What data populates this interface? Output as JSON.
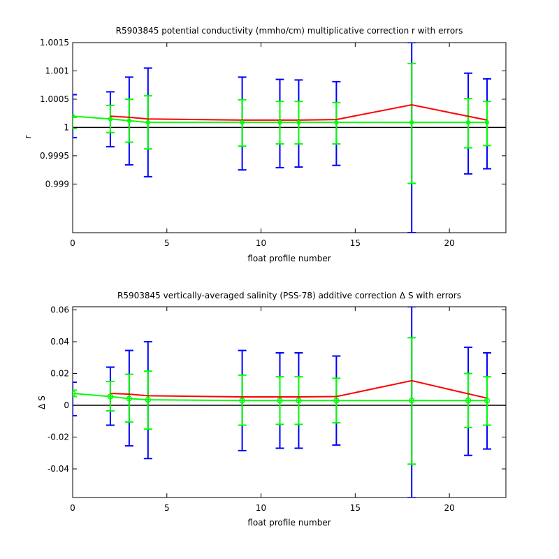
{
  "chart_data": [
    {
      "type": "line",
      "title": "R5903845 potential conductivity (mmho/cm) multiplicative correction r with errors",
      "xlabel": "float profile number",
      "ylabel": "r",
      "xlim": [
        0,
        23
      ],
      "ylim": [
        0.99814,
        1.0015
      ],
      "xticks": [
        0,
        5,
        10,
        15,
        20
      ],
      "yticks": [
        0.999,
        0.9995,
        1,
        1.0005,
        1.001,
        1.0015
      ],
      "ytick_labels": [
        "0.999",
        "0.9995",
        "1",
        "1.0005",
        "1.001",
        "1.0015"
      ],
      "reference_line": 1,
      "grid": false,
      "colors": {
        "red": "#ff0000",
        "green": "#00ff00",
        "blue": "#0000ff",
        "ref": "#000000"
      },
      "series": [
        {
          "color": "#ff0000",
          "x": [
            2,
            3,
            4,
            9,
            11,
            12,
            14,
            18,
            22
          ],
          "y": [
            1.0002,
            1.00018,
            1.00015,
            1.00013,
            1.00013,
            1.00013,
            1.00014,
            1.0004,
            1.00013
          ]
        },
        {
          "color": "#00ff00",
          "x": [
            0,
            2,
            3,
            4,
            9,
            11,
            12,
            14,
            18,
            21,
            22
          ],
          "y": [
            1.0002,
            1.00015,
            1.00012,
            1.00009,
            1.00009,
            1.00009,
            1.00009,
            1.00009,
            1.00009,
            1.00009,
            1.00009
          ]
        }
      ],
      "errorbars_blue": [
        {
          "x": 0,
          "low": 0.99982,
          "high": 1.00058
        },
        {
          "x": 2,
          "low": 0.99966,
          "high": 1.00063
        },
        {
          "x": 3,
          "low": 0.99934,
          "high": 1.00089
        },
        {
          "x": 4,
          "low": 0.99913,
          "high": 1.00105
        },
        {
          "x": 9,
          "low": 0.99925,
          "high": 1.00089
        },
        {
          "x": 11,
          "low": 0.99929,
          "high": 1.00085
        },
        {
          "x": 12,
          "low": 0.9993,
          "high": 1.00084
        },
        {
          "x": 14,
          "low": 0.99933,
          "high": 1.00081
        },
        {
          "x": 18,
          "low": 0.99814,
          "high": 1.0015
        },
        {
          "x": 21,
          "low": 0.99918,
          "high": 1.00096
        },
        {
          "x": 22,
          "low": 0.99927,
          "high": 1.00086
        }
      ],
      "errorbars_green": [
        {
          "x": 0,
          "low": 0.99998,
          "high": 1.00018
        },
        {
          "x": 2,
          "low": 0.99991,
          "high": 1.00039
        },
        {
          "x": 3,
          "low": 0.99974,
          "high": 1.0005
        },
        {
          "x": 4,
          "low": 0.99962,
          "high": 1.00056
        },
        {
          "x": 9,
          "low": 0.99967,
          "high": 1.00049
        },
        {
          "x": 11,
          "low": 0.99971,
          "high": 1.00046
        },
        {
          "x": 12,
          "low": 0.99971,
          "high": 1.00046
        },
        {
          "x": 14,
          "low": 0.99971,
          "high": 1.00044
        },
        {
          "x": 18,
          "low": 0.99901,
          "high": 1.00113
        },
        {
          "x": 21,
          "low": 0.99964,
          "high": 1.00051
        },
        {
          "x": 22,
          "low": 0.99968,
          "high": 1.00046
        }
      ]
    },
    {
      "type": "line",
      "title": "R5903845 vertically-averaged salinity (PSS-78) additive correction Δ S with errors",
      "xlabel": "float profile number",
      "ylabel": "Δ S",
      "xlim": [
        0,
        23
      ],
      "ylim": [
        -0.058,
        0.062
      ],
      "xticks": [
        0,
        5,
        10,
        15,
        20
      ],
      "yticks": [
        -0.04,
        -0.02,
        0,
        0.02,
        0.04,
        0.06
      ],
      "ytick_labels": [
        "-0.04",
        "-0.02",
        "0",
        "0.02",
        "0.04",
        "0.06"
      ],
      "reference_line": 0,
      "grid": false,
      "colors": {
        "red": "#ff0000",
        "green": "#00ff00",
        "blue": "#0000ff",
        "ref": "#000000"
      },
      "series": [
        {
          "color": "#ff0000",
          "x": [
            2,
            3,
            4,
            9,
            11,
            12,
            14,
            18,
            22
          ],
          "y": [
            0.0075,
            0.007,
            0.006,
            0.0053,
            0.0053,
            0.0053,
            0.0055,
            0.0155,
            0.0045
          ]
        },
        {
          "color": "#00ff00",
          "x": [
            0,
            2,
            3,
            4,
            9,
            11,
            12,
            14,
            18,
            21,
            22
          ],
          "y": [
            0.0075,
            0.0055,
            0.0042,
            0.0035,
            0.003,
            0.003,
            0.003,
            0.003,
            0.003,
            0.003,
            0.003
          ]
        }
      ],
      "errorbars_blue": [
        {
          "x": 0,
          "low": -0.0065,
          "high": 0.0145
        },
        {
          "x": 2,
          "low": -0.0125,
          "high": 0.024
        },
        {
          "x": 3,
          "low": -0.0255,
          "high": 0.0345
        },
        {
          "x": 4,
          "low": -0.0335,
          "high": 0.04
        },
        {
          "x": 9,
          "low": -0.0285,
          "high": 0.0345
        },
        {
          "x": 11,
          "low": -0.027,
          "high": 0.033
        },
        {
          "x": 12,
          "low": -0.027,
          "high": 0.033
        },
        {
          "x": 14,
          "low": -0.025,
          "high": 0.031
        },
        {
          "x": 18,
          "low": -0.058,
          "high": 0.062
        },
        {
          "x": 21,
          "low": -0.0315,
          "high": 0.0365
        },
        {
          "x": 22,
          "low": -0.0275,
          "high": 0.033
        }
      ],
      "errorbars_green": [
        {
          "x": 0,
          "low": 0.0055,
          "high": 0.0095
        },
        {
          "x": 2,
          "low": -0.0035,
          "high": 0.015
        },
        {
          "x": 3,
          "low": -0.0105,
          "high": 0.0195
        },
        {
          "x": 4,
          "low": -0.015,
          "high": 0.0215
        },
        {
          "x": 9,
          "low": -0.0125,
          "high": 0.019
        },
        {
          "x": 11,
          "low": -0.012,
          "high": 0.018
        },
        {
          "x": 12,
          "low": -0.012,
          "high": 0.018
        },
        {
          "x": 14,
          "low": -0.011,
          "high": 0.017
        },
        {
          "x": 18,
          "low": -0.037,
          "high": 0.0425
        },
        {
          "x": 21,
          "low": -0.014,
          "high": 0.02
        },
        {
          "x": 22,
          "low": -0.0125,
          "high": 0.018
        }
      ]
    }
  ]
}
